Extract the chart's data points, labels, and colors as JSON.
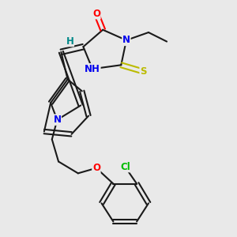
{
  "bg_color": "#e9e9e9",
  "bond_color": "#1a1a1a",
  "atom_colors": {
    "O": "#ff0000",
    "N": "#0000ee",
    "S": "#bbbb00",
    "Cl": "#00bb00",
    "H": "#008888",
    "C": "#1a1a1a"
  }
}
